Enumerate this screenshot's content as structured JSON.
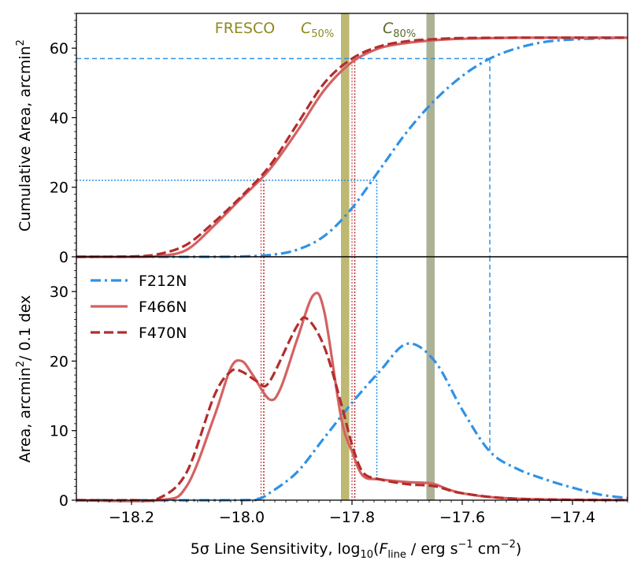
{
  "chart_data": [
    {
      "id": "top",
      "type": "line",
      "ylabel": "Cumulative Area, arcmin",
      "ylabel_sup": "2",
      "xlim": [
        -18.3,
        -17.3
      ],
      "ylim": [
        0,
        70
      ],
      "y_ticks": [
        0,
        20,
        40,
        60
      ],
      "series": [
        {
          "name": "F212N",
          "color": "#2f92e6",
          "dash": "dashdot",
          "x": [
            -18.3,
            -18.05,
            -18.0,
            -17.95,
            -17.9,
            -17.85,
            -17.8,
            -17.75,
            -17.7,
            -17.65,
            -17.6,
            -17.55,
            -17.5,
            -17.45,
            -17.4,
            -17.35,
            -17.3
          ],
          "y": [
            0,
            0,
            0.1,
            0.5,
            2,
            6,
            14,
            25,
            36,
            45,
            52,
            57,
            60,
            61.8,
            62.5,
            62.8,
            63
          ]
        },
        {
          "name": "F466N",
          "color": "#d46262",
          "dash": "solid",
          "x": [
            -18.3,
            -18.2,
            -18.15,
            -18.1,
            -18.05,
            -18.0,
            -17.95,
            -17.9,
            -17.85,
            -17.8,
            -17.75,
            -17.7,
            -17.65,
            -17.6,
            -17.5,
            -17.4,
            -17.3
          ],
          "y": [
            0,
            0,
            0.2,
            2,
            9,
            17,
            25,
            36,
            48,
            56,
            60,
            61.5,
            62.3,
            62.7,
            63,
            63,
            63
          ]
        },
        {
          "name": "F470N",
          "color": "#b32d2d",
          "dash": "dashed",
          "x": [
            -18.3,
            -18.2,
            -18.15,
            -18.1,
            -18.05,
            -18.0,
            -17.95,
            -17.9,
            -17.85,
            -17.8,
            -17.75,
            -17.7,
            -17.65,
            -17.6,
            -17.5,
            -17.4,
            -17.3
          ],
          "y": [
            0,
            0.1,
            0.8,
            3.5,
            10,
            17.5,
            26,
            38,
            50,
            57,
            60.5,
            62,
            62.6,
            62.9,
            63,
            63,
            63
          ]
        }
      ],
      "hlines": [
        {
          "y": 57,
          "x_end": -17.55,
          "color": "#2f92e6",
          "style": "dashed"
        },
        {
          "y": 22,
          "x_end": -17.755,
          "color": "#2f92e6",
          "style": "dotted"
        }
      ],
      "vspans": [
        {
          "label": "FRESCO",
          "x0": -17.82,
          "x1": -17.805,
          "color": "#b3ac5a",
          "label_color": "#8e8a1e"
        },
        {
          "label": "C",
          "label_sub": "50%",
          "x0": -17.82,
          "x1": -17.805,
          "color": "#b3ac5a",
          "label_color": "#8e8a1e"
        },
        {
          "label": "C",
          "label_sub": "80%",
          "x0": -17.665,
          "x1": -17.65,
          "color": "#9ea584",
          "label_color": "#5a6a2a"
        }
      ]
    },
    {
      "id": "bottom",
      "type": "line",
      "xlabel": "5σ Line Sensitivity, log",
      "ylabel": "Area, arcmin",
      "ylabel_sup": "2",
      "ylabel_tail": "/ 0.1 dex",
      "xlim": [
        -18.3,
        -17.3
      ],
      "ylim": [
        0,
        35
      ],
      "x_ticks": [
        -18.2,
        -18.0,
        -17.8,
        -17.6,
        -17.4
      ],
      "x_tick_labels": [
        "−18.2",
        "−18.0",
        "−17.8",
        "−17.6",
        "−17.4"
      ],
      "y_ticks": [
        0,
        10,
        20,
        30
      ],
      "legend_position": "top-left",
      "series": [
        {
          "name": "F212N",
          "color": "#2f92e6",
          "dash": "dashdot",
          "x": [
            -18.3,
            -18.0,
            -17.97,
            -17.95,
            -17.9,
            -17.85,
            -17.8,
            -17.75,
            -17.7,
            -17.65,
            -17.6,
            -17.55,
            -17.5,
            -17.45,
            -17.4,
            -17.35,
            -17.3
          ],
          "y": [
            0,
            0,
            0.2,
            1,
            4,
            9,
            14,
            18.5,
            22.5,
            20,
            13,
            7,
            4.5,
            3,
            1.8,
            0.8,
            0.3
          ]
        },
        {
          "name": "F466N",
          "color": "#d46262",
          "dash": "solid",
          "x": [
            -18.3,
            -18.15,
            -18.1,
            -18.05,
            -18.02,
            -18.0,
            -17.98,
            -17.95,
            -17.93,
            -17.9,
            -17.87,
            -17.85,
            -17.82,
            -17.8,
            -17.78,
            -17.75,
            -17.7,
            -17.67,
            -17.65,
            -17.6,
            -17.5,
            -17.3
          ],
          "y": [
            0,
            0,
            2,
            12,
            19,
            20,
            18,
            14.5,
            16,
            23,
            29.5,
            27,
            12,
            7,
            3.5,
            3,
            2.6,
            2.5,
            2.3,
            1,
            0.2,
            0
          ]
        },
        {
          "name": "F470N",
          "color": "#b32d2d",
          "dash": "dashed",
          "x": [
            -18.3,
            -18.2,
            -18.15,
            -18.1,
            -18.05,
            -18.02,
            -18.0,
            -17.97,
            -17.95,
            -17.9,
            -17.88,
            -17.85,
            -17.82,
            -17.8,
            -17.78,
            -17.75,
            -17.7,
            -17.65,
            -17.6,
            -17.5,
            -17.3
          ],
          "y": [
            0,
            0,
            0.3,
            4,
            15,
            18.5,
            18.5,
            17,
            17,
            25,
            26,
            22,
            14,
            8,
            4,
            3,
            2.3,
            2,
            1,
            0.2,
            0
          ]
        }
      ],
      "vlines": [
        {
          "x": -17.55,
          "y_end": 7,
          "color": "#2f92e6",
          "style": "dashed"
        },
        {
          "x": -17.755,
          "y_end": 3,
          "color": "#2f92e6",
          "style": "dotted"
        },
        {
          "x": -17.965,
          "y_end": 0,
          "color": "#d46262",
          "style": "dotted"
        },
        {
          "x": -17.96,
          "y_end": 0,
          "color": "#b32d2d",
          "style": "dotted"
        },
        {
          "x": -17.8,
          "y_end": 0,
          "color": "#d46262",
          "style": "dotted"
        },
        {
          "x": -17.795,
          "y_end": 0,
          "color": "#b32d2d",
          "style": "dotted"
        }
      ]
    }
  ],
  "xlabel_parts": {
    "main": "5σ Line Sensitivity, log",
    "sub10": "10",
    "open": "(",
    "F": "F",
    "line": "line",
    "unit": " / erg s",
    "exp1": "−1",
    "cm": " cm",
    "exp2": "−2",
    "close": ")"
  }
}
